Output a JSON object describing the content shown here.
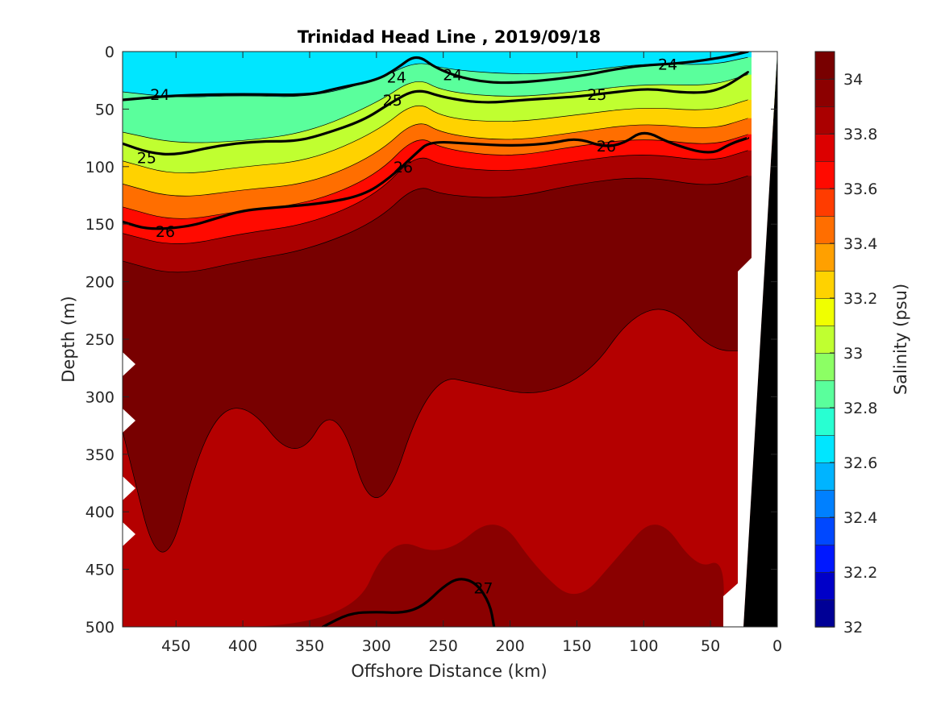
{
  "chart_data": {
    "type": "contour",
    "title": "Trinidad Head Line , 2019/09/18",
    "xlabel": "Offshore Distance (km)",
    "ylabel": "Depth (m)",
    "xlim": [
      490,
      0
    ],
    "ylim": [
      0,
      500
    ],
    "x_reversed": true,
    "y_reversed": true,
    "xticks": [
      450,
      400,
      350,
      300,
      250,
      200,
      150,
      100,
      50,
      0
    ],
    "yticks": [
      0,
      50,
      100,
      150,
      200,
      250,
      300,
      350,
      400,
      450,
      500
    ],
    "colorbar": {
      "label": "Salinity (psu)",
      "range": [
        32,
        34.1
      ],
      "ticks": [
        32,
        32.2,
        32.4,
        32.6,
        32.8,
        33,
        33.2,
        33.4,
        33.6,
        33.8,
        34
      ],
      "colors": [
        "#000096",
        "#0000c8",
        "#0018ff",
        "#0048ff",
        "#0080ff",
        "#00b4ff",
        "#00e6ff",
        "#28ffd2",
        "#5aff9c",
        "#8cff64",
        "#c0ff30",
        "#f0ff00",
        "#ffd200",
        "#ffa000",
        "#ff6e00",
        "#ff3c00",
        "#ff0a00",
        "#dc0000",
        "#aa0000",
        "#8c0000",
        "#780000"
      ]
    },
    "salinity_layers": [
      {
        "level": 32.6,
        "depths": [
          [
            490,
            0
          ],
          [
            400,
            0
          ],
          [
            350,
            0
          ],
          [
            300,
            0
          ],
          [
            250,
            0
          ],
          [
            200,
            0
          ],
          [
            150,
            0
          ],
          [
            100,
            0
          ],
          [
            50,
            0
          ],
          [
            22,
            0
          ]
        ]
      },
      {
        "level": 32.8,
        "depths": [
          [
            490,
            35
          ],
          [
            450,
            40
          ],
          [
            400,
            38
          ],
          [
            350,
            40
          ],
          [
            300,
            25
          ],
          [
            270,
            8
          ],
          [
            250,
            15
          ],
          [
            200,
            20
          ],
          [
            150,
            18
          ],
          [
            100,
            10
          ],
          [
            50,
            12
          ],
          [
            22,
            5
          ]
        ]
      },
      {
        "level": 33.0,
        "depths": [
          [
            490,
            70
          ],
          [
            450,
            80
          ],
          [
            400,
            78
          ],
          [
            350,
            70
          ],
          [
            300,
            45
          ],
          [
            270,
            22
          ],
          [
            250,
            35
          ],
          [
            200,
            40
          ],
          [
            150,
            35
          ],
          [
            100,
            28
          ],
          [
            50,
            30
          ],
          [
            22,
            20
          ]
        ]
      },
      {
        "level": 33.2,
        "depths": [
          [
            490,
            95
          ],
          [
            450,
            108
          ],
          [
            400,
            100
          ],
          [
            350,
            95
          ],
          [
            300,
            70
          ],
          [
            270,
            42
          ],
          [
            250,
            58
          ],
          [
            200,
            62
          ],
          [
            150,
            55
          ],
          [
            100,
            48
          ],
          [
            50,
            52
          ],
          [
            22,
            42
          ]
        ]
      },
      {
        "level": 33.4,
        "depths": [
          [
            490,
            115
          ],
          [
            450,
            128
          ],
          [
            400,
            120
          ],
          [
            350,
            115
          ],
          [
            300,
            90
          ],
          [
            270,
            58
          ],
          [
            250,
            72
          ],
          [
            200,
            78
          ],
          [
            150,
            70
          ],
          [
            100,
            62
          ],
          [
            50,
            68
          ],
          [
            22,
            58
          ]
        ]
      },
      {
        "level": 33.6,
        "depths": [
          [
            490,
            135
          ],
          [
            450,
            148
          ],
          [
            400,
            138
          ],
          [
            350,
            132
          ],
          [
            300,
            108
          ],
          [
            270,
            72
          ],
          [
            250,
            85
          ],
          [
            200,
            92
          ],
          [
            150,
            82
          ],
          [
            100,
            75
          ],
          [
            50,
            82
          ],
          [
            22,
            72
          ]
        ]
      },
      {
        "level": 33.8,
        "depths": [
          [
            490,
            158
          ],
          [
            450,
            170
          ],
          [
            400,
            158
          ],
          [
            350,
            150
          ],
          [
            300,
            125
          ],
          [
            270,
            88
          ],
          [
            250,
            100
          ],
          [
            200,
            105
          ],
          [
            150,
            95
          ],
          [
            100,
            88
          ],
          [
            50,
            96
          ],
          [
            22,
            86
          ]
        ]
      },
      {
        "level": 34.0,
        "depths": [
          [
            490,
            182
          ],
          [
            450,
            195
          ],
          [
            400,
            182
          ],
          [
            350,
            172
          ],
          [
            300,
            148
          ],
          [
            270,
            115
          ],
          [
            250,
            125
          ],
          [
            200,
            128
          ],
          [
            150,
            115
          ],
          [
            100,
            108
          ],
          [
            50,
            118
          ],
          [
            22,
            108
          ]
        ]
      },
      {
        "level": 34.05,
        "depths": [
          [
            490,
            330
          ],
          [
            460,
            470
          ],
          [
            430,
            330
          ],
          [
            400,
            300
          ],
          [
            360,
            360
          ],
          [
            330,
            300
          ],
          [
            300,
            420
          ],
          [
            260,
            280
          ],
          [
            220,
            290
          ],
          [
            180,
            300
          ],
          [
            140,
            280
          ],
          [
            110,
            230
          ],
          [
            80,
            220
          ],
          [
            50,
            260
          ],
          [
            22,
            260
          ]
        ]
      },
      {
        "level": 34.1,
        "depths": [
          [
            490,
            500
          ],
          [
            320,
            500
          ],
          [
            290,
            420
          ],
          [
            250,
            440
          ],
          [
            210,
            400
          ],
          [
            180,
            450
          ],
          [
            150,
            480
          ],
          [
            120,
            440
          ],
          [
            90,
            400
          ],
          [
            60,
            450
          ],
          [
            40,
            440
          ],
          [
            40,
            500
          ]
        ]
      }
    ],
    "density_contours": [
      {
        "label": "24",
        "points": [
          [
            490,
            42
          ],
          [
            450,
            38
          ],
          [
            400,
            37
          ],
          [
            350,
            38
          ],
          [
            330,
            32
          ],
          [
            300,
            25
          ],
          [
            285,
            15
          ],
          [
            270,
            2
          ],
          [
            255,
            15
          ],
          [
            230,
            25
          ],
          [
            200,
            28
          ],
          [
            150,
            22
          ],
          [
            120,
            15
          ],
          [
            100,
            12
          ],
          [
            70,
            10
          ],
          [
            40,
            5
          ],
          [
            22,
            0
          ]
        ]
      },
      {
        "label": "25",
        "points": [
          [
            490,
            80
          ],
          [
            470,
            88
          ],
          [
            450,
            90
          ],
          [
            420,
            82
          ],
          [
            390,
            78
          ],
          [
            360,
            78
          ],
          [
            340,
            72
          ],
          [
            310,
            60
          ],
          [
            290,
            45
          ],
          [
            270,
            32
          ],
          [
            250,
            40
          ],
          [
            220,
            45
          ],
          [
            190,
            42
          ],
          [
            160,
            40
          ],
          [
            140,
            38
          ],
          [
            120,
            35
          ],
          [
            95,
            32
          ],
          [
            70,
            36
          ],
          [
            45,
            35
          ],
          [
            22,
            18
          ]
        ]
      },
      {
        "label": "26",
        "points": [
          [
            490,
            148
          ],
          [
            470,
            155
          ],
          [
            440,
            152
          ],
          [
            420,
            145
          ],
          [
            400,
            138
          ],
          [
            370,
            135
          ],
          [
            340,
            132
          ],
          [
            310,
            125
          ],
          [
            290,
            110
          ],
          [
            270,
            88
          ],
          [
            260,
            78
          ],
          [
            230,
            80
          ],
          [
            200,
            82
          ],
          [
            170,
            80
          ],
          [
            150,
            75
          ],
          [
            130,
            83
          ],
          [
            115,
            80
          ],
          [
            100,
            68
          ],
          [
            80,
            80
          ],
          [
            50,
            90
          ],
          [
            35,
            80
          ],
          [
            22,
            75
          ]
        ]
      },
      {
        "label": "27",
        "points": [
          [
            212,
            500
          ],
          [
            215,
            480
          ],
          [
            225,
            462
          ],
          [
            238,
            457
          ],
          [
            250,
            465
          ],
          [
            265,
            482
          ],
          [
            280,
            488
          ],
          [
            300,
            487
          ],
          [
            320,
            488
          ],
          [
            340,
            500
          ]
        ],
        "frame": "screen"
      }
    ]
  },
  "labels": {
    "title": "Trinidad Head Line , 2019/09/18",
    "xlabel": "Offshore Distance (km)",
    "ylabel": "Depth (m)",
    "colorbar_label": "Salinity (psu)"
  }
}
